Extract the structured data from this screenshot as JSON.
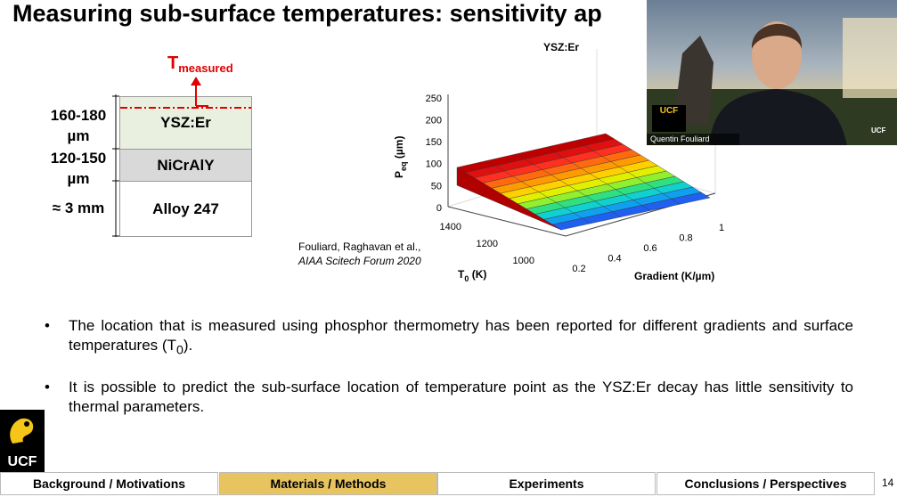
{
  "slide": {
    "title": "Measuring sub-surface temperatures: sensitivity ap",
    "diagram": {
      "marker": {
        "main": "T",
        "sub": "measured"
      },
      "layers": [
        {
          "thickness": "160-180 µm",
          "name": "YSZ:Er"
        },
        {
          "thickness": "120-150 µm",
          "name": "NiCrAlY"
        },
        {
          "thickness": "≈ 3 mm",
          "name": "Alloy 247"
        }
      ]
    },
    "plot": {
      "title": "YSZ:Er",
      "z_label": {
        "main": "P",
        "sub": "eq",
        "unit": " (µm)"
      },
      "z_ticks": [
        "250",
        "200",
        "150",
        "100",
        "50",
        "0"
      ],
      "t_ticks": [
        "1400",
        "1200",
        "1000"
      ],
      "g_ticks": [
        "0.2",
        "0.4",
        "0.6",
        "0.8",
        "1"
      ],
      "t_label": {
        "main": "T",
        "sub": "0",
        "unit": " (K)"
      },
      "g_label": "Gradient (K/µm)"
    },
    "citation": {
      "authors": "Fouliard, Raghavan  et al.,",
      "venue": "AIAA Scitech Forum 2020"
    },
    "bullets": [
      {
        "text": "The location that is measured using phosphor thermometry has been reported for different gradients and surface temperatures (T",
        "sub": "0",
        "tail": ")."
      },
      {
        "text": "It is possible to predict the sub-surface location of temperature point as the YSZ:Er decay has little sensitivity to thermal parameters.",
        "sub": "",
        "tail": ""
      }
    ],
    "logo": "UCF",
    "video": {
      "badge": "UCF",
      "name": "Quentin Fouliard",
      "corner": "UCF"
    },
    "nav": {
      "items": [
        "Background / Motivations",
        "Materials / Methods",
        "Experiments",
        "Conclusions / Perspectives"
      ],
      "active": 1
    },
    "page_number": "14"
  }
}
